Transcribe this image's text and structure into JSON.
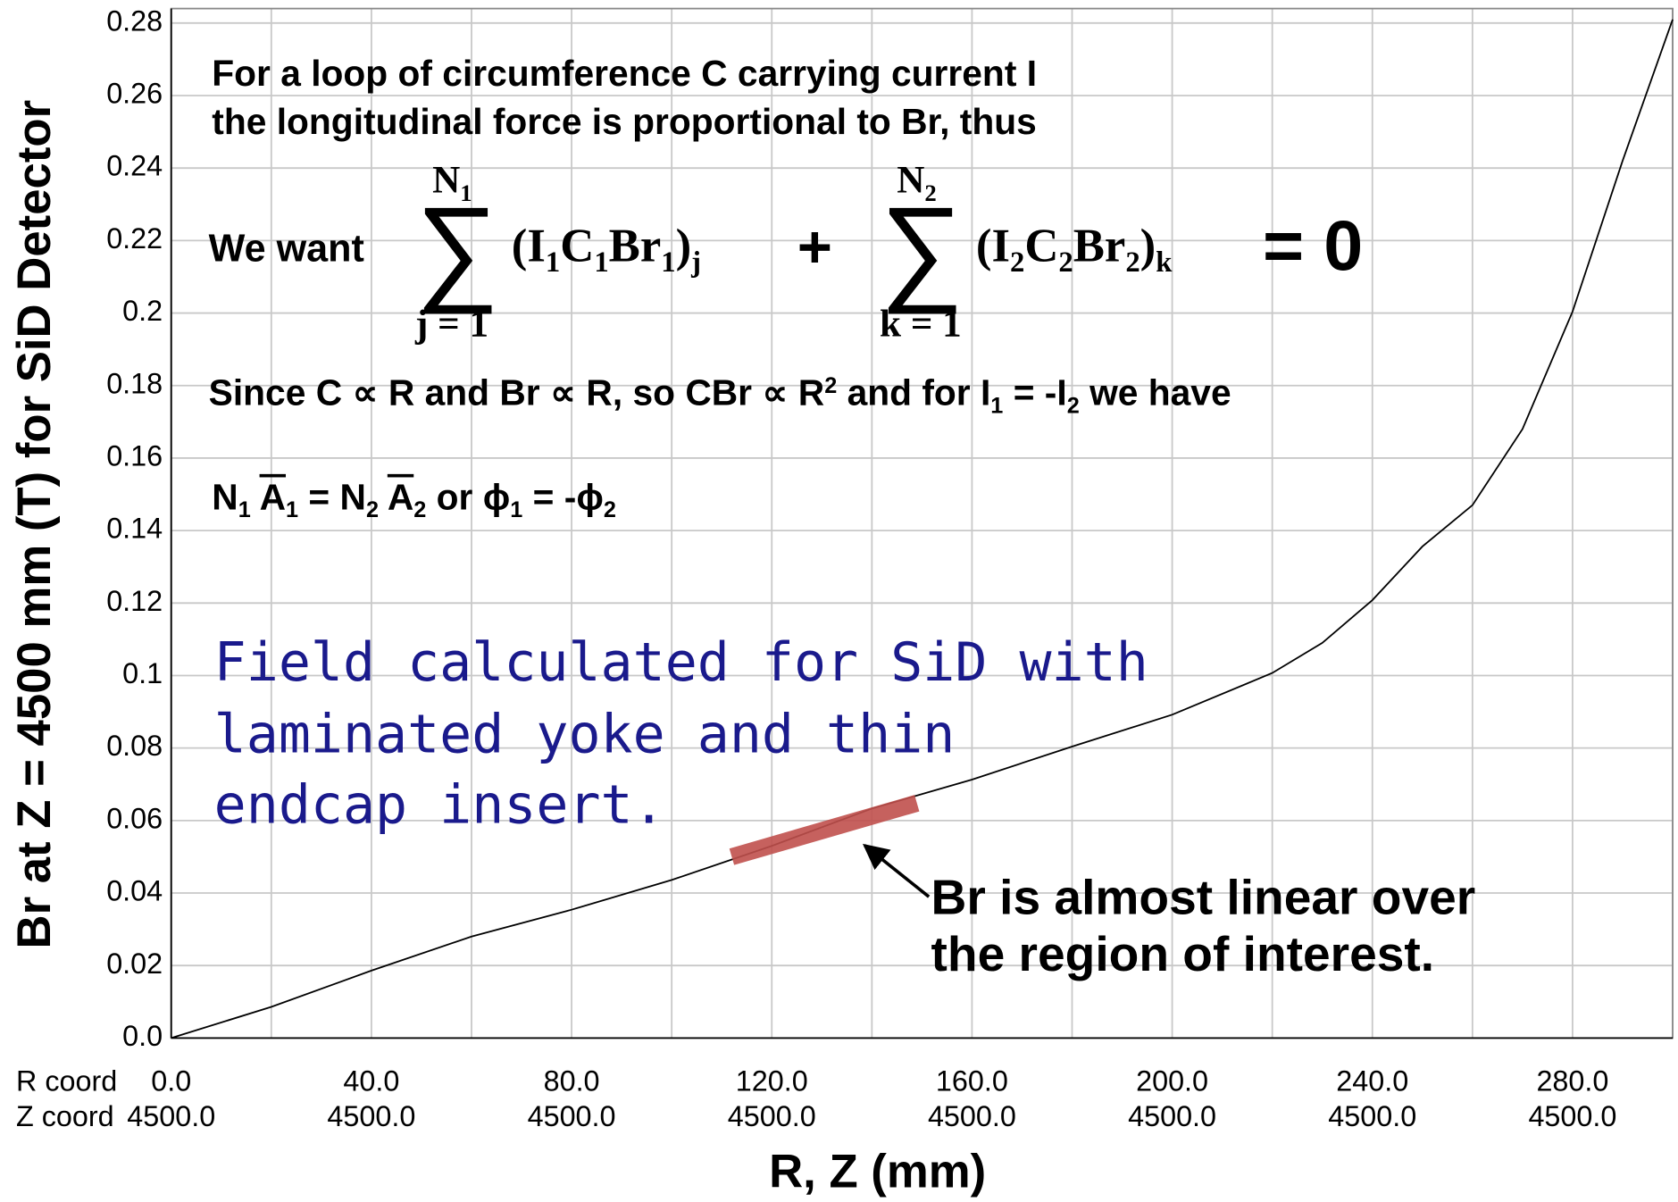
{
  "chart_data": {
    "type": "line",
    "y_label": "Br at Z = 4500 mm (T) for SiD Detector",
    "x_label": "R, Z (mm)",
    "x_row_names": [
      "R coord",
      "Z coord"
    ],
    "xlim": [
      0,
      300
    ],
    "ylim": [
      0,
      0.284
    ],
    "xticks": [
      {
        "value": 0,
        "label": "0.0"
      },
      {
        "value": 40,
        "label": "40.0"
      },
      {
        "value": 80,
        "label": "80.0"
      },
      {
        "value": 120,
        "label": "120.0"
      },
      {
        "value": 160,
        "label": "160.0"
      },
      {
        "value": 200,
        "label": "200.0"
      },
      {
        "value": 240,
        "label": "240.0"
      },
      {
        "value": 280,
        "label": "280.0"
      }
    ],
    "z_tick_labels": [
      "4500.0",
      "4500.0",
      "4500.0",
      "4500.0",
      "4500.0",
      "4500.0",
      "4500.0",
      "4500.0"
    ],
    "xgrid": [
      0,
      20,
      40,
      60,
      80,
      100,
      120,
      140,
      160,
      180,
      200,
      220,
      240,
      260,
      280,
      300
    ],
    "yticks": [
      {
        "value": 0,
        "label": "0.0"
      },
      0.02,
      0.04,
      0.06,
      0.08,
      0.1,
      0.12,
      0.14,
      0.16,
      0.18,
      0.2,
      0.22,
      0.24,
      0.26,
      0.28
    ],
    "grid": true,
    "color": "#000000",
    "x": [
      0,
      20,
      40,
      60,
      80,
      100,
      120,
      140,
      160,
      180,
      200,
      220,
      230,
      240,
      250,
      260,
      270,
      280,
      290,
      300
    ],
    "values": [
      0,
      0.0086,
      0.0186,
      0.028,
      0.0354,
      0.0436,
      0.053,
      0.0633,
      0.0713,
      0.0804,
      0.0892,
      0.1007,
      0.109,
      0.1208,
      0.1356,
      0.147,
      0.168,
      0.2004,
      0.242,
      0.281
    ],
    "highlight": {
      "x": [
        112,
        149
      ],
      "values": [
        0.05,
        0.0648
      ],
      "color": "#c0504d"
    },
    "annotations": {
      "intro": [
        "For a loop of circumference C carrying current I",
        "the longitudinal force is proportional to Br, thus"
      ],
      "equation": {
        "lead": "We want",
        "sums": [
          {
            "symbol": "∑",
            "upper": [
              {
                "text": "N",
                "sub": "1"
              }
            ],
            "lower": "j = 1",
            "term": [
              {
                "text": "(I",
                "sub": "1"
              },
              {
                "text": "C",
                "sub": "1"
              },
              {
                "text": "Br",
                "sub": "1"
              },
              {
                "text": ")",
                "sub": "j"
              }
            ]
          },
          {
            "symbol": "∑",
            "upper": [
              {
                "text": "N",
                "sub": "2"
              }
            ],
            "lower": "k = 1",
            "term": [
              {
                "text": "(I",
                "sub": "2"
              },
              {
                "text": "C",
                "sub": "2"
              },
              {
                "text": "Br",
                "sub": "2"
              },
              {
                "text": ")",
                "sub": "k"
              }
            ]
          }
        ],
        "plus": "+",
        "rhs": "= 0"
      },
      "since": [
        {
          "text": "Since C ∝ R and Br ∝ R, so CBr ∝ R",
          "sup": "2"
        },
        {
          "text": " and for I",
          "sub": "1"
        },
        {
          "text": " = -I",
          "sub": "2"
        },
        {
          "text": " we have"
        }
      ],
      "flux": [
        {
          "text": "N",
          "sub": "1"
        },
        {
          "text": " "
        },
        {
          "text": "A",
          "sub": "1",
          "over": true
        },
        {
          "text": " = N",
          "sub": "2"
        },
        {
          "text": " "
        },
        {
          "text": "A",
          "sub": "2",
          "over": true
        },
        {
          "text": " or ϕ",
          "sub": "1"
        },
        {
          "text": " = -ϕ",
          "sub": "2"
        }
      ],
      "note": [
        "Field calculated for SiD with",
        "laminated yoke and thin",
        "endcap insert."
      ],
      "callout": [
        "Br is almost linear over",
        "the region of interest."
      ]
    }
  }
}
